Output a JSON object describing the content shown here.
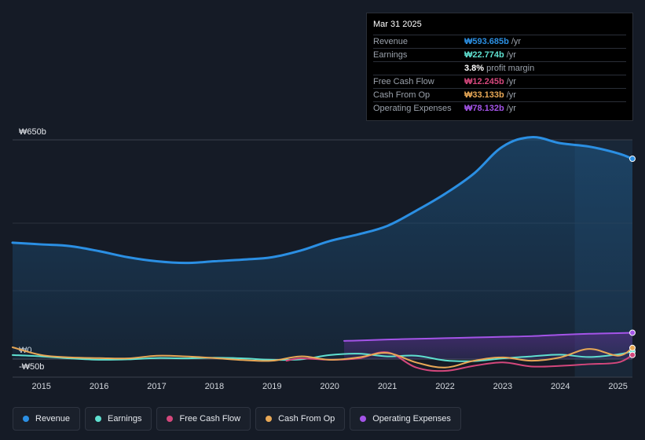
{
  "tooltip": {
    "date": "Mar 31 2025",
    "rows": [
      {
        "label": "Revenue",
        "value": "₩593.685b",
        "unit": "/yr",
        "color": "#2b8fe3"
      },
      {
        "label": "Earnings",
        "value": "₩22.774b",
        "unit": "/yr",
        "color": "#5fe0d0"
      },
      {
        "label": "",
        "value": "3.8%",
        "unit": "profit margin",
        "color": "#ffffff"
      },
      {
        "label": "Free Cash Flow",
        "value": "₩12.245b",
        "unit": "/yr",
        "color": "#d4477c"
      },
      {
        "label": "Cash From Op",
        "value": "₩33.133b",
        "unit": "/yr",
        "color": "#e8a856"
      },
      {
        "label": "Operating Expenses",
        "value": "₩78.132b",
        "unit": "/yr",
        "color": "#a454e8"
      }
    ]
  },
  "legend": [
    {
      "label": "Revenue",
      "color": "#2b8fe3"
    },
    {
      "label": "Earnings",
      "color": "#5fe0d0"
    },
    {
      "label": "Free Cash Flow",
      "color": "#d4477c"
    },
    {
      "label": "Cash From Op",
      "color": "#e8a856"
    },
    {
      "label": "Operating Expenses",
      "color": "#a454e8"
    }
  ],
  "chart_data": {
    "type": "line",
    "title": "",
    "unit": "KRW billions (annualized)",
    "y_labels": {
      "top": "₩650b",
      "zero": "₩0",
      "bottom": "-₩50b"
    },
    "ylim": [
      -50,
      650
    ],
    "xlim": [
      2014.5,
      2025.25
    ],
    "x_ticks": [
      "2015",
      "2016",
      "2017",
      "2018",
      "2019",
      "2020",
      "2021",
      "2022",
      "2023",
      "2024",
      "2025"
    ],
    "forecast_region_start": 2024.25,
    "series": [
      {
        "name": "Revenue",
        "color": "#2b8fe3",
        "area": true,
        "points": [
          [
            2014.5,
            345
          ],
          [
            2015.0,
            340
          ],
          [
            2015.5,
            335
          ],
          [
            2016.0,
            320
          ],
          [
            2016.5,
            302
          ],
          [
            2017.0,
            290
          ],
          [
            2017.5,
            285
          ],
          [
            2018.0,
            290
          ],
          [
            2018.5,
            295
          ],
          [
            2019.0,
            302
          ],
          [
            2019.5,
            322
          ],
          [
            2020.0,
            350
          ],
          [
            2020.5,
            370
          ],
          [
            2021.0,
            395
          ],
          [
            2021.5,
            440
          ],
          [
            2022.0,
            490
          ],
          [
            2022.5,
            550
          ],
          [
            2023.0,
            630
          ],
          [
            2023.5,
            658
          ],
          [
            2024.0,
            640
          ],
          [
            2024.5,
            630
          ],
          [
            2025.0,
            610
          ],
          [
            2025.25,
            594
          ]
        ]
      },
      {
        "name": "Earnings",
        "color": "#5fe0d0",
        "points": [
          [
            2014.5,
            12
          ],
          [
            2015.0,
            8
          ],
          [
            2015.5,
            2
          ],
          [
            2016.0,
            -2
          ],
          [
            2016.5,
            -1
          ],
          [
            2017.0,
            3
          ],
          [
            2017.5,
            2
          ],
          [
            2018.0,
            4
          ],
          [
            2018.5,
            2
          ],
          [
            2019.0,
            -2
          ],
          [
            2019.5,
            -1
          ],
          [
            2020.0,
            12
          ],
          [
            2020.5,
            16
          ],
          [
            2021.0,
            8
          ],
          [
            2021.5,
            10
          ],
          [
            2022.0,
            -4
          ],
          [
            2022.5,
            -6
          ],
          [
            2023.0,
            2
          ],
          [
            2023.5,
            8
          ],
          [
            2024.0,
            13
          ],
          [
            2024.5,
            6
          ],
          [
            2025.0,
            14
          ],
          [
            2025.25,
            22.8
          ]
        ]
      },
      {
        "name": "Free Cash Flow",
        "color": "#d4477c",
        "points": [
          [
            2019.25,
            -5
          ],
          [
            2019.5,
            2
          ],
          [
            2020.0,
            -2
          ],
          [
            2020.5,
            2
          ],
          [
            2021.0,
            20
          ],
          [
            2021.5,
            -25
          ],
          [
            2022.0,
            -35
          ],
          [
            2022.5,
            -20
          ],
          [
            2023.0,
            -10
          ],
          [
            2023.5,
            -22
          ],
          [
            2024.0,
            -20
          ],
          [
            2024.5,
            -15
          ],
          [
            2025.0,
            -10
          ],
          [
            2025.25,
            12.2
          ]
        ]
      },
      {
        "name": "Cash From Op",
        "color": "#e8a856",
        "points": [
          [
            2014.5,
            35
          ],
          [
            2015.0,
            12
          ],
          [
            2015.5,
            5
          ],
          [
            2016.0,
            3
          ],
          [
            2016.5,
            2
          ],
          [
            2017.0,
            10
          ],
          [
            2017.5,
            8
          ],
          [
            2018.0,
            3
          ],
          [
            2018.5,
            -3
          ],
          [
            2019.0,
            -5
          ],
          [
            2019.5,
            8
          ],
          [
            2020.0,
            -2
          ],
          [
            2020.5,
            5
          ],
          [
            2021.0,
            18
          ],
          [
            2021.5,
            -10
          ],
          [
            2022.0,
            -25
          ],
          [
            2022.5,
            -5
          ],
          [
            2023.0,
            5
          ],
          [
            2023.5,
            -5
          ],
          [
            2024.0,
            5
          ],
          [
            2024.5,
            30
          ],
          [
            2025.0,
            10
          ],
          [
            2025.25,
            33.1
          ]
        ]
      },
      {
        "name": "Operating Expenses",
        "color": "#a454e8",
        "area": true,
        "points": [
          [
            2020.25,
            54
          ],
          [
            2020.5,
            55
          ],
          [
            2021.0,
            58
          ],
          [
            2021.5,
            60
          ],
          [
            2022.0,
            62
          ],
          [
            2022.5,
            64
          ],
          [
            2023.0,
            66
          ],
          [
            2023.5,
            68
          ],
          [
            2024.0,
            72
          ],
          [
            2024.5,
            75
          ],
          [
            2025.0,
            77
          ],
          [
            2025.25,
            78.1
          ]
        ]
      }
    ]
  }
}
